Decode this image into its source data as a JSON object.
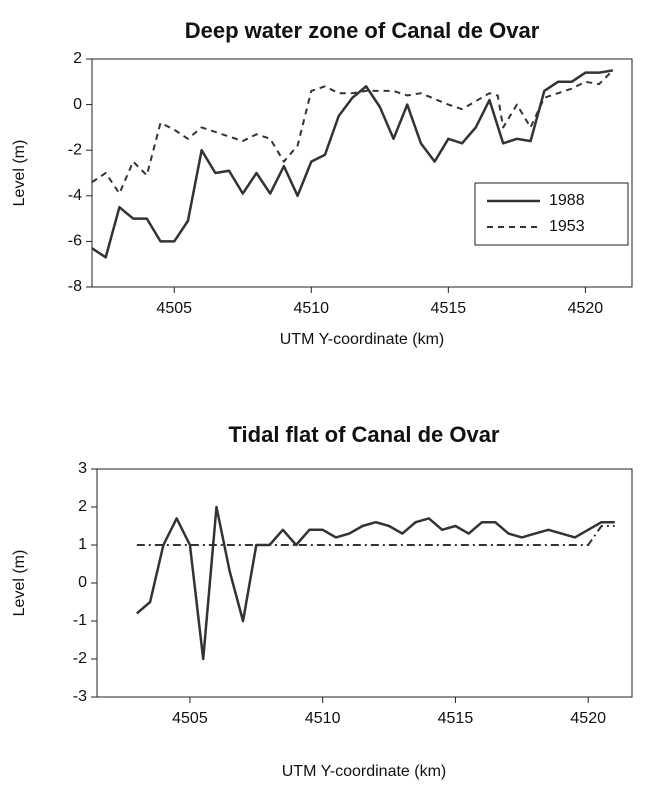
{
  "chart_data": [
    {
      "type": "line",
      "title": "Deep water zone of Canal de Ovar",
      "x_label": "UTM Y-coordinate (km)",
      "y_label": "Level (m)",
      "xlim": [
        4502,
        4521.7
      ],
      "xticks": [
        4505,
        4510,
        4515,
        4520
      ],
      "ylim": [
        -8,
        2
      ],
      "yticks": [
        2,
        0,
        -2,
        -4,
        -6,
        -8
      ],
      "legend": "lower right",
      "series": [
        {
          "name": "1988",
          "color": "#333333",
          "dash": "solid",
          "x": [
            4502,
            4502.5,
            4503,
            4503.5,
            4504,
            4504.5,
            4505,
            4505.5,
            4506,
            4506.5,
            4507,
            4507.5,
            4508,
            4508.5,
            4509,
            4509.5,
            4510,
            4510.5,
            4511,
            4511.5,
            4512,
            4512.5,
            4513,
            4513.5,
            4514,
            4514.5,
            4515,
            4515.5,
            4516,
            4516.5,
            4517,
            4517.5,
            4518,
            4518.5,
            4519,
            4519.5,
            4520,
            4520.5,
            4521
          ],
          "values": [
            -6.3,
            -6.7,
            -4.5,
            -5,
            -5,
            -6,
            -6,
            -5.1,
            -2,
            -3,
            -2.9,
            -3.9,
            -3,
            -3.9,
            -2.7,
            -4,
            -2.5,
            -2.2,
            -0.5,
            0.3,
            0.8,
            -0.1,
            -1.5,
            0,
            -1.7,
            -2.5,
            -1.5,
            -1.7,
            -1,
            0.2,
            -1.7,
            -1.5,
            -1.6,
            0.6,
            1,
            1,
            1.4,
            1.4,
            1.5
          ]
        },
        {
          "name": "1953",
          "color": "#333333",
          "dash": "dashed",
          "x": [
            4502,
            4502.5,
            4503,
            4503.5,
            4504,
            4504.5,
            4505,
            4505.5,
            4506,
            4506.5,
            4507,
            4507.5,
            4508,
            4508.5,
            4509,
            4509.5,
            4510,
            4510.5,
            4511,
            4511.5,
            4512,
            4512.5,
            4513,
            4513.5,
            4514,
            4515,
            4515.5,
            4516.5,
            4516.8,
            4517,
            4517.5,
            4518,
            4518.5,
            4519,
            4519.5,
            4520,
            4520.5,
            4521
          ],
          "values": [
            -3.4,
            -3,
            -3.9,
            -2.5,
            -3.1,
            -0.8,
            -1.1,
            -1.5,
            -1,
            -1.2,
            -1.4,
            -1.6,
            -1.3,
            -1.5,
            -2.5,
            -1.8,
            0.6,
            0.8,
            0.5,
            0.5,
            0.6,
            0.6,
            0.6,
            0.4,
            0.5,
            0,
            -0.2,
            0.5,
            0.4,
            -1,
            0,
            -1,
            0.3,
            0.5,
            0.7,
            1,
            0.9,
            1.5
          ]
        }
      ]
    },
    {
      "type": "line",
      "title": "Tidal flat of Canal de Ovar",
      "x_label": "UTM Y-coordinate (km)",
      "y_label": "Level (m)",
      "xlim": [
        4501.5,
        4521.65
      ],
      "xticks": [
        4505,
        4510,
        4515,
        4520
      ],
      "ylim": [
        -3,
        3
      ],
      "yticks": [
        3,
        2,
        1,
        0,
        -1,
        -2,
        -3
      ],
      "series": [
        {
          "color": "#333333",
          "dash": "solid",
          "x": [
            4503,
            4503.5,
            4504,
            4504.5,
            4505,
            4505.5,
            4506,
            4506.5,
            4507,
            4507.5,
            4508,
            4508.5,
            4509,
            4509.5,
            4510,
            4510.5,
            4511,
            4511.5,
            4512,
            4512.5,
            4513,
            4513.5,
            4514,
            4514.5,
            4515,
            4515.5,
            4516,
            4516.5,
            4517,
            4517.5,
            4518,
            4518.5,
            4519,
            4519.5,
            4520,
            4520.5,
            4521
          ],
          "values": [
            -0.8,
            -0.5,
            1,
            1.7,
            1,
            -2,
            2,
            0.3,
            -1,
            1,
            1,
            1.4,
            1,
            1.4,
            1.4,
            1.2,
            1.3,
            1.5,
            1.6,
            1.5,
            1.3,
            1.6,
            1.7,
            1.4,
            1.5,
            1.3,
            1.6,
            1.6,
            1.3,
            1.2,
            1.3,
            1.4,
            1.3,
            1.2,
            1.4,
            1.6,
            1.6
          ]
        },
        {
          "color": "#333333",
          "dash": "dash-dot",
          "x": [
            4503,
            4520,
            4520.5,
            4521
          ],
          "values": [
            1,
            1,
            1.5,
            1.5
          ]
        }
      ]
    }
  ]
}
